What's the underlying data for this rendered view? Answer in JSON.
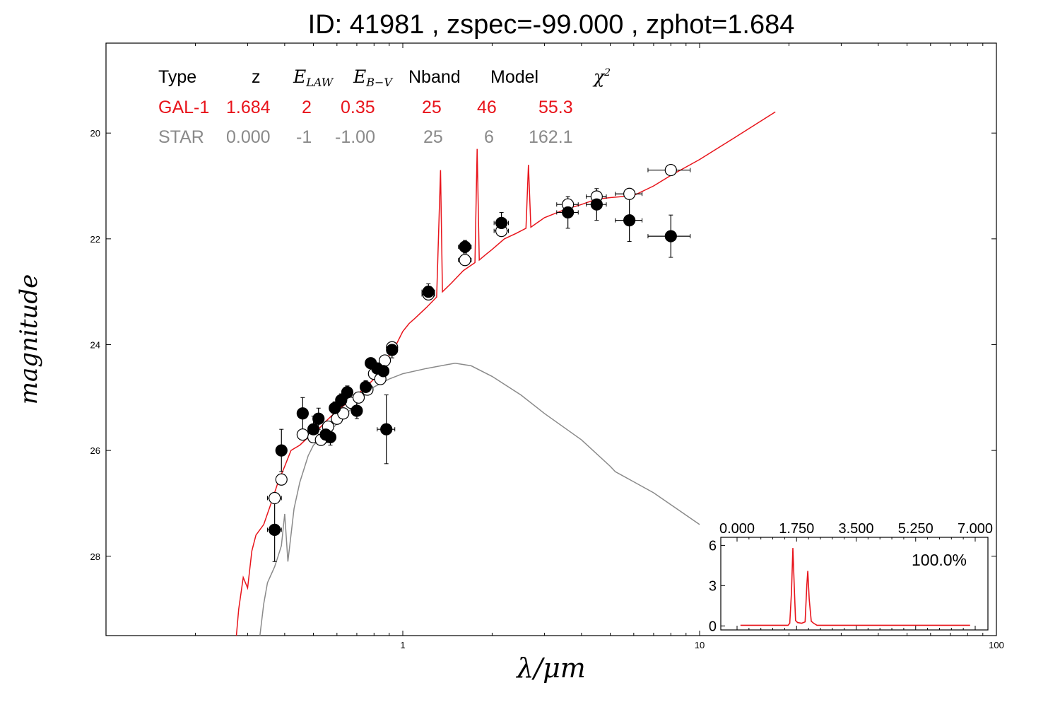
{
  "title": "ID:  41981 , zspec=-99.000 , zphot=1.684",
  "colors": {
    "galaxy": "#e8141b",
    "star": "#8a8a8a",
    "axis": "#000000",
    "inset": "#e8141b"
  },
  "chart_data": [
    {
      "type": "scatter",
      "xlabel": "λ/μm",
      "ylabel": "magnitude",
      "xscale": "log",
      "xlim": [
        0.1,
        100
      ],
      "ylim": [
        29.5,
        18.3
      ],
      "x_ticks": [
        1,
        10,
        100
      ],
      "x_tick_labels": [
        "1",
        "10",
        "100"
      ],
      "y_ticks": [
        20,
        22,
        24,
        26,
        28
      ],
      "y_tick_labels": [
        "20",
        "22",
        "24",
        "26",
        "28"
      ],
      "grid": false,
      "fit_table": {
        "headers": [
          "Type",
          "z",
          "E_LAW",
          "E_B−V",
          "Nband",
          "Model",
          "χ²"
        ],
        "rows": [
          {
            "name": "GAL-1",
            "cells": [
              "GAL-1",
              "1.684",
              "2",
              "0.35",
              "25",
              "46",
              "55.3"
            ],
            "color": "#e8141b"
          },
          {
            "name": "STAR",
            "cells": [
              "STAR",
              "0.000",
              "-1",
              "-1.00",
              "25",
              "6",
              "162.1"
            ],
            "color": "#8a8a8a"
          }
        ]
      },
      "series": [
        {
          "name": "GAL-1",
          "kind": "line",
          "points": [
            [
              0.275,
              29.5
            ],
            [
              0.28,
              29.0
            ],
            [
              0.29,
              28.4
            ],
            [
              0.3,
              28.6
            ],
            [
              0.31,
              27.9
            ],
            [
              0.32,
              27.6
            ],
            [
              0.34,
              27.4
            ],
            [
              0.36,
              27.0
            ],
            [
              0.38,
              26.6
            ],
            [
              0.4,
              26.3
            ],
            [
              0.42,
              26.0
            ],
            [
              0.45,
              25.9
            ],
            [
              0.48,
              25.75
            ],
            [
              0.5,
              25.7
            ],
            [
              0.55,
              25.45
            ],
            [
              0.6,
              25.25
            ],
            [
              0.65,
              25.1
            ],
            [
              0.7,
              24.95
            ],
            [
              0.75,
              24.8
            ],
            [
              0.8,
              24.65
            ],
            [
              0.85,
              24.5
            ],
            [
              0.9,
              24.2
            ],
            [
              0.95,
              24.0
            ],
            [
              1.0,
              23.75
            ],
            [
              1.05,
              23.6
            ],
            [
              1.1,
              23.5
            ],
            [
              1.2,
              23.3
            ],
            [
              1.3,
              23.1
            ],
            [
              1.34,
              20.7
            ],
            [
              1.36,
              23.0
            ],
            [
              1.45,
              22.85
            ],
            [
              1.6,
              22.6
            ],
            [
              1.75,
              22.45
            ],
            [
              1.78,
              20.3
            ],
            [
              1.81,
              22.4
            ],
            [
              1.9,
              22.3
            ],
            [
              2.0,
              22.2
            ],
            [
              2.2,
              22.0
            ],
            [
              2.4,
              21.9
            ],
            [
              2.6,
              21.8
            ],
            [
              2.65,
              20.6
            ],
            [
              2.7,
              21.78
            ],
            [
              3.0,
              21.6
            ],
            [
              3.5,
              21.45
            ],
            [
              4.0,
              21.35
            ],
            [
              4.5,
              21.25
            ],
            [
              5.0,
              21.22
            ],
            [
              5.5,
              21.2
            ],
            [
              6.0,
              21.18
            ],
            [
              7.0,
              21.0
            ],
            [
              8.0,
              20.8
            ],
            [
              10.0,
              20.5
            ],
            [
              13.0,
              20.1
            ],
            [
              18.0,
              19.6
            ]
          ]
        },
        {
          "name": "STAR",
          "kind": "line",
          "points": [
            [
              0.33,
              29.5
            ],
            [
              0.34,
              28.9
            ],
            [
              0.35,
              28.5
            ],
            [
              0.37,
              28.2
            ],
            [
              0.38,
              28.0
            ],
            [
              0.39,
              27.8
            ],
            [
              0.4,
              27.2
            ],
            [
              0.41,
              28.1
            ],
            [
              0.43,
              27.1
            ],
            [
              0.45,
              26.6
            ],
            [
              0.48,
              26.1
            ],
            [
              0.5,
              25.9
            ],
            [
              0.55,
              25.7
            ],
            [
              0.6,
              25.5
            ],
            [
              0.7,
              25.1
            ],
            [
              0.8,
              24.8
            ],
            [
              0.9,
              24.65
            ],
            [
              1.0,
              24.55
            ],
            [
              1.2,
              24.45
            ],
            [
              1.5,
              24.35
            ],
            [
              1.7,
              24.4
            ],
            [
              2.0,
              24.6
            ],
            [
              2.5,
              24.95
            ],
            [
              3.0,
              25.3
            ],
            [
              4.0,
              25.8
            ],
            [
              5.0,
              26.3
            ],
            [
              5.2,
              26.4
            ],
            [
              7.0,
              26.8
            ],
            [
              10.0,
              27.4
            ]
          ]
        },
        {
          "name": "observed",
          "kind": "filled_points",
          "points": [
            {
              "x": 0.37,
              "y": 27.5,
              "xerr": 0.02,
              "yerr": 0.6
            },
            {
              "x": 0.39,
              "y": 26.0,
              "xerr": 0.015,
              "yerr": 0.4
            },
            {
              "x": 0.46,
              "y": 25.3,
              "xerr": 0.015,
              "yerr": 0.3
            },
            {
              "x": 0.5,
              "y": 25.6,
              "xerr": 0.015,
              "yerr": 0.25
            },
            {
              "x": 0.52,
              "y": 25.4,
              "xerr": 0.015,
              "yerr": 0.2
            },
            {
              "x": 0.55,
              "y": 25.7,
              "xerr": 0.02,
              "yerr": 0.15
            },
            {
              "x": 0.57,
              "y": 25.75,
              "xerr": 0.02,
              "yerr": 0.15
            },
            {
              "x": 0.59,
              "y": 25.2,
              "xerr": 0.02,
              "yerr": 0.12
            },
            {
              "x": 0.62,
              "y": 25.05,
              "xerr": 0.02,
              "yerr": 0.12
            },
            {
              "x": 0.65,
              "y": 24.9,
              "xerr": 0.02,
              "yerr": 0.12
            },
            {
              "x": 0.7,
              "y": 25.25,
              "xerr": 0.02,
              "yerr": 0.15
            },
            {
              "x": 0.75,
              "y": 24.8,
              "xerr": 0.02,
              "yerr": 0.12
            },
            {
              "x": 0.78,
              "y": 24.35,
              "xerr": 0.025,
              "yerr": 0.1
            },
            {
              "x": 0.82,
              "y": 24.45,
              "xerr": 0.025,
              "yerr": 0.1
            },
            {
              "x": 0.86,
              "y": 24.5,
              "xerr": 0.025,
              "yerr": 0.12
            },
            {
              "x": 0.88,
              "y": 25.6,
              "xerr": 0.06,
              "yerr": 0.65
            },
            {
              "x": 0.92,
              "y": 24.1,
              "xerr": 0.025,
              "yerr": 0.15
            },
            {
              "x": 1.22,
              "y": 23.0,
              "xerr": 0.06,
              "yerr": 0.15
            },
            {
              "x": 1.62,
              "y": 22.15,
              "xerr": 0.08,
              "yerr": 0.12
            },
            {
              "x": 2.15,
              "y": 21.7,
              "xerr": 0.12,
              "yerr": 0.2
            },
            {
              "x": 3.6,
              "y": 21.5,
              "xerr": 0.3,
              "yerr": 0.3
            },
            {
              "x": 4.5,
              "y": 21.35,
              "xerr": 0.35,
              "yerr": 0.3
            },
            {
              "x": 5.8,
              "y": 21.65,
              "xerr": 0.6,
              "yerr": 0.4
            },
            {
              "x": 8.0,
              "y": 21.95,
              "xerr": 1.3,
              "yerr": 0.4
            }
          ]
        },
        {
          "name": "model",
          "kind": "open_points",
          "points": [
            {
              "x": 0.37,
              "y": 26.9,
              "xerr": 0.02
            },
            {
              "x": 0.39,
              "y": 26.55,
              "xerr": 0.015
            },
            {
              "x": 0.46,
              "y": 25.7,
              "xerr": 0.015
            },
            {
              "x": 0.5,
              "y": 25.75,
              "xerr": 0.015
            },
            {
              "x": 0.53,
              "y": 25.8,
              "xerr": 0.015
            },
            {
              "x": 0.56,
              "y": 25.55,
              "xerr": 0.02
            },
            {
              "x": 0.6,
              "y": 25.4,
              "xerr": 0.02
            },
            {
              "x": 0.63,
              "y": 25.3,
              "xerr": 0.02
            },
            {
              "x": 0.67,
              "y": 25.1,
              "xerr": 0.02
            },
            {
              "x": 0.71,
              "y": 25.0,
              "xerr": 0.02
            },
            {
              "x": 0.76,
              "y": 24.85,
              "xerr": 0.02
            },
            {
              "x": 0.8,
              "y": 24.55,
              "xerr": 0.025
            },
            {
              "x": 0.84,
              "y": 24.65,
              "xerr": 0.025
            },
            {
              "x": 0.87,
              "y": 24.3,
              "xerr": 0.025
            },
            {
              "x": 0.92,
              "y": 24.05,
              "xerr": 0.025
            },
            {
              "x": 1.22,
              "y": 23.05,
              "xerr": 0.06
            },
            {
              "x": 1.62,
              "y": 22.4,
              "xerr": 0.08
            },
            {
              "x": 2.15,
              "y": 21.85,
              "xerr": 0.12
            },
            {
              "x": 3.6,
              "y": 21.35,
              "xerr": 0.3
            },
            {
              "x": 4.5,
              "y": 21.2,
              "xerr": 0.35
            },
            {
              "x": 5.8,
              "y": 21.15,
              "xerr": 0.6
            },
            {
              "x": 8.0,
              "y": 20.7,
              "xerr": 1.3
            }
          ]
        }
      ]
    },
    {
      "type": "line",
      "role": "inset",
      "xlim": [
        0,
        7
      ],
      "ylim": [
        -0.3,
        6.6
      ],
      "x_ticks": [
        0,
        1.75,
        3.5,
        5.25,
        7
      ],
      "x_tick_labels": [
        "0.000",
        "1.750",
        "3.500",
        "5.250",
        "7.000"
      ],
      "y_ticks": [
        0,
        3,
        6
      ],
      "y_tick_labels": [
        "0",
        "3",
        "6"
      ],
      "annotation": "100.0%",
      "series": [
        {
          "name": "P(z)",
          "points": [
            [
              0.1,
              0.05
            ],
            [
              1.5,
              0.05
            ],
            [
              1.55,
              0.2
            ],
            [
              1.6,
              2.5
            ],
            [
              1.64,
              5.8
            ],
            [
              1.68,
              3.0
            ],
            [
              1.72,
              0.4
            ],
            [
              1.78,
              0.25
            ],
            [
              1.9,
              0.2
            ],
            [
              2.0,
              0.3
            ],
            [
              2.05,
              3.0
            ],
            [
              2.08,
              4.1
            ],
            [
              2.12,
              2.0
            ],
            [
              2.18,
              0.35
            ],
            [
              2.25,
              0.2
            ],
            [
              2.35,
              0.05
            ],
            [
              6.85,
              0.05
            ]
          ]
        }
      ]
    }
  ]
}
